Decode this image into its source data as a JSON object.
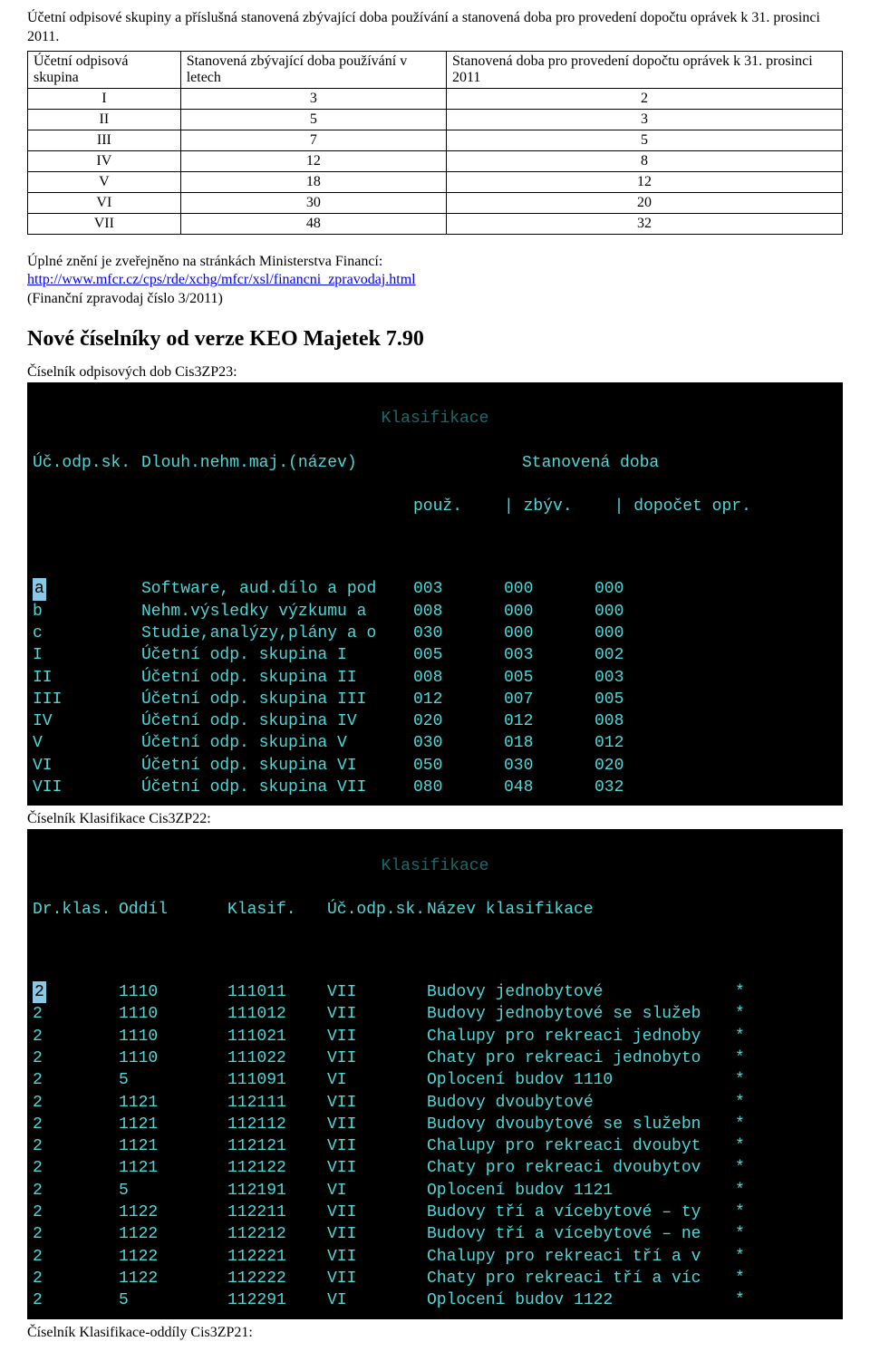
{
  "intro": {
    "p1": "Účetní odpisové skupiny a příslušná stanovená zbývající doba používání a stanovená doba pro provedení dopočtu oprávek k 31. prosinci 2011."
  },
  "table1": {
    "h_skupina": "Účetní odpisová skupina",
    "h_zbyv": "Stanovená zbývající doba používání v letech",
    "h_dopocet": "Stanovená doba pro provedení dopočtu oprávek k 31. prosinci 2011",
    "rows": [
      {
        "sk": "I",
        "zb": "3",
        "dp": "2"
      },
      {
        "sk": "II",
        "zb": "5",
        "dp": "3"
      },
      {
        "sk": "III",
        "zb": "7",
        "dp": "5"
      },
      {
        "sk": "IV",
        "zb": "12",
        "dp": "8"
      },
      {
        "sk": "V",
        "zb": "18",
        "dp": "12"
      },
      {
        "sk": "VI",
        "zb": "30",
        "dp": "20"
      },
      {
        "sk": "VII",
        "zb": "48",
        "dp": "32"
      }
    ]
  },
  "fullnote": {
    "line1": "Úplné znění je zveřejněno na stránkách Ministerstva Financí:",
    "link_text": "http://www.mfcr.cz/cps/rde/xchg/mfcr/xsl/financni_zpravodaj.html",
    "line3": "(Finanční zpravodaj číslo 3/2011)"
  },
  "section_heading": "Nové číselníky od verze KEO Majetek 7.90",
  "cis1_label": "Číselník odpisových dob Cis3ZP23:",
  "term1": {
    "title": "Klasifikace",
    "header": {
      "h1": "Úč.odp.sk.",
      "h2": "Dlouh.nehm.maj.(název)",
      "h3_line1": "Stanovená doba",
      "h3_line2_p": "použ.",
      "h3_line2_sep1": "|",
      "h3_line2_z": "zbýv.",
      "h3_line2_sep2": "|",
      "h3_line2_d": "dopočet opr."
    },
    "rows": [
      {
        "code": "a",
        "name": "Software, aud.dílo a pod",
        "p": "003",
        "z": "000",
        "d": "000",
        "cursor": true
      },
      {
        "code": "b",
        "name": "Nehm.výsledky výzkumu a",
        "p": "008",
        "z": "000",
        "d": "000"
      },
      {
        "code": "c",
        "name": "Studie,analýzy,plány a o",
        "p": "030",
        "z": "000",
        "d": "000"
      },
      {
        "code": "I",
        "name": "Účetní odp. skupina I",
        "p": "005",
        "z": "003",
        "d": "002"
      },
      {
        "code": "II",
        "name": "Účetní odp. skupina II",
        "p": "008",
        "z": "005",
        "d": "003"
      },
      {
        "code": "III",
        "name": "Účetní odp. skupina III",
        "p": "012",
        "z": "007",
        "d": "005"
      },
      {
        "code": "IV",
        "name": "Účetní odp. skupina IV",
        "p": "020",
        "z": "012",
        "d": "008"
      },
      {
        "code": "V",
        "name": "Účetní odp. skupina V",
        "p": "030",
        "z": "018",
        "d": "012"
      },
      {
        "code": "VI",
        "name": "Účetní odp. skupina VI",
        "p": "050",
        "z": "030",
        "d": "020"
      },
      {
        "code": "VII",
        "name": "Účetní odp. skupina VII",
        "p": "080",
        "z": "048",
        "d": "032"
      }
    ]
  },
  "cis2_label": "Číselník Klasifikace Cis3ZP22:",
  "term2": {
    "title": "Klasifikace",
    "header": {
      "h1": "Dr.klas.",
      "h2": "Oddíl",
      "h3": "Klasif.",
      "h4": "Úč.odp.sk.",
      "h5": "Název klasifikace"
    },
    "rows": [
      {
        "dr": "2",
        "od": "1110",
        "kl": "111011",
        "sk": "VII",
        "nm": "Budovy jednobytové",
        "ast": "*",
        "cursor": true
      },
      {
        "dr": "2",
        "od": "1110",
        "kl": "111012",
        "sk": "VII",
        "nm": "Budovy jednobytové se služeb",
        "ast": "*"
      },
      {
        "dr": "2",
        "od": "1110",
        "kl": "111021",
        "sk": "VII",
        "nm": "Chalupy pro rekreaci jednoby",
        "ast": "*"
      },
      {
        "dr": "2",
        "od": "1110",
        "kl": "111022",
        "sk": "VII",
        "nm": "Chaty pro rekreaci jednobyto",
        "ast": "*"
      },
      {
        "dr": "2",
        "od": "5",
        "kl": "111091",
        "sk": "VI",
        "nm": "Oplocení budov 1110",
        "ast": "*"
      },
      {
        "dr": "2",
        "od": "1121",
        "kl": "112111",
        "sk": "VII",
        "nm": "Budovy dvoubytové",
        "ast": "*"
      },
      {
        "dr": "2",
        "od": "1121",
        "kl": "112112",
        "sk": "VII",
        "nm": "Budovy dvoubytové se služebn",
        "ast": "*"
      },
      {
        "dr": "2",
        "od": "1121",
        "kl": "112121",
        "sk": "VII",
        "nm": "Chalupy pro rekreaci dvoubyt",
        "ast": "*"
      },
      {
        "dr": "2",
        "od": "1121",
        "kl": "112122",
        "sk": "VII",
        "nm": "Chaty pro rekreaci dvoubytov",
        "ast": "*"
      },
      {
        "dr": "2",
        "od": "5",
        "kl": "112191",
        "sk": "VI",
        "nm": "Oplocení budov 1121",
        "ast": "*"
      },
      {
        "dr": "2",
        "od": "1122",
        "kl": "112211",
        "sk": "VII",
        "nm": "Budovy tří a vícebytové – ty",
        "ast": "*"
      },
      {
        "dr": "2",
        "od": "1122",
        "kl": "112212",
        "sk": "VII",
        "nm": "Budovy tří a vícebytové – ne",
        "ast": "*"
      },
      {
        "dr": "2",
        "od": "1122",
        "kl": "112221",
        "sk": "VII",
        "nm": "Chalupy pro rekreaci tří a v",
        "ast": "*"
      },
      {
        "dr": "2",
        "od": "1122",
        "kl": "112222",
        "sk": "VII",
        "nm": "Chaty pro rekreaci tří a víc",
        "ast": "*"
      },
      {
        "dr": "2",
        "od": "5",
        "kl": "112291",
        "sk": "VI",
        "nm": "Oplocení budov 1122",
        "ast": "*"
      }
    ]
  },
  "cis3_label": "Číselník Klasifikace-oddíly Cis3ZP21:"
}
